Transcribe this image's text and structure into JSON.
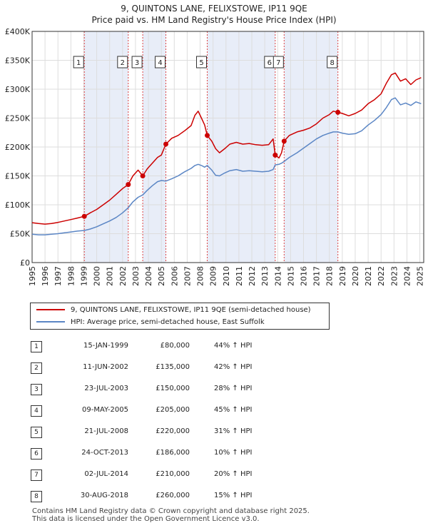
{
  "colors": {
    "property_line": "#cc0000",
    "hpi_line": "#5b86c5",
    "shade": "#e8edf8",
    "marker_line": "#dd4444"
  },
  "chart_data": {
    "type": "line",
    "title": "9, QUINTONS LANE, FELIXSTOWE, IP11 9QE",
    "subtitle": "Price paid vs. HM Land Registry's House Price Index (HPI)",
    "xlim": [
      1995.0,
      2025.3
    ],
    "ylim": [
      0,
      400000
    ],
    "x_ticks": [
      1995,
      1996,
      1997,
      1998,
      1999,
      2000,
      2001,
      2002,
      2003,
      2004,
      2005,
      2006,
      2007,
      2008,
      2009,
      2010,
      2011,
      2012,
      2013,
      2014,
      2015,
      2016,
      2017,
      2018,
      2019,
      2020,
      2021,
      2022,
      2023,
      2024,
      2025
    ],
    "y_ticks": [
      {
        "value": 0,
        "label": "£0"
      },
      {
        "value": 50000,
        "label": "£50K"
      },
      {
        "value": 100000,
        "label": "£100K"
      },
      {
        "value": 150000,
        "label": "£150K"
      },
      {
        "value": 200000,
        "label": "£200K"
      },
      {
        "value": 250000,
        "label": "£250K"
      },
      {
        "value": 300000,
        "label": "£300K"
      },
      {
        "value": 350000,
        "label": "£350K"
      },
      {
        "value": 400000,
        "label": "£400K"
      }
    ],
    "shaded_ranges": [
      [
        1999.04,
        2002.44
      ],
      [
        2003.56,
        2005.35
      ],
      [
        2008.55,
        2013.81
      ],
      [
        2014.5,
        2018.66
      ]
    ],
    "series": [
      {
        "name": "9, QUINTONS LANE, FELIXSTOWE, IP11 9QE (semi-detached house)",
        "color_key": "property_line",
        "points": [
          [
            1995.0,
            69000
          ],
          [
            1995.5,
            67500
          ],
          [
            1996.0,
            66500
          ],
          [
            1996.5,
            67500
          ],
          [
            1997.0,
            69500
          ],
          [
            1997.5,
            72000
          ],
          [
            1998.0,
            74500
          ],
          [
            1998.5,
            77000
          ],
          [
            1999.04,
            80000
          ],
          [
            1999.5,
            86000
          ],
          [
            2000.0,
            92000
          ],
          [
            2000.5,
            100000
          ],
          [
            2001.0,
            108000
          ],
          [
            2001.5,
            118000
          ],
          [
            2002.0,
            128000
          ],
          [
            2002.44,
            135000
          ],
          [
            2002.8,
            150000
          ],
          [
            2003.2,
            160000
          ],
          [
            2003.56,
            150000
          ],
          [
            2003.9,
            162000
          ],
          [
            2004.3,
            172000
          ],
          [
            2004.7,
            182000
          ],
          [
            2005.0,
            186000
          ],
          [
            2005.35,
            205000
          ],
          [
            2005.8,
            215000
          ],
          [
            2006.3,
            220000
          ],
          [
            2006.8,
            228000
          ],
          [
            2007.3,
            237000
          ],
          [
            2007.6,
            255000
          ],
          [
            2007.85,
            262000
          ],
          [
            2008.1,
            250000
          ],
          [
            2008.35,
            238000
          ],
          [
            2008.55,
            220000
          ],
          [
            2008.9,
            210000
          ],
          [
            2009.2,
            197000
          ],
          [
            2009.5,
            190000
          ],
          [
            2009.9,
            197000
          ],
          [
            2010.3,
            205000
          ],
          [
            2010.8,
            208000
          ],
          [
            2011.3,
            205000
          ],
          [
            2011.8,
            206000
          ],
          [
            2012.3,
            204000
          ],
          [
            2012.8,
            203000
          ],
          [
            2013.3,
            204000
          ],
          [
            2013.65,
            214000
          ],
          [
            2013.81,
            186000
          ],
          [
            2014.1,
            181000
          ],
          [
            2014.3,
            190000
          ],
          [
            2014.5,
            210000
          ],
          [
            2014.9,
            220000
          ],
          [
            2015.5,
            226000
          ],
          [
            2016.0,
            229000
          ],
          [
            2016.5,
            233000
          ],
          [
            2017.0,
            240000
          ],
          [
            2017.5,
            250000
          ],
          [
            2018.0,
            256000
          ],
          [
            2018.3,
            262000
          ],
          [
            2018.66,
            260000
          ],
          [
            2019.0,
            258000
          ],
          [
            2019.5,
            254000
          ],
          [
            2020.0,
            258000
          ],
          [
            2020.5,
            264000
          ],
          [
            2021.0,
            275000
          ],
          [
            2021.5,
            282000
          ],
          [
            2022.0,
            292000
          ],
          [
            2022.4,
            310000
          ],
          [
            2022.8,
            325000
          ],
          [
            2023.1,
            328000
          ],
          [
            2023.5,
            314000
          ],
          [
            2023.9,
            318000
          ],
          [
            2024.3,
            308000
          ],
          [
            2024.7,
            316000
          ],
          [
            2025.1,
            320000
          ]
        ]
      },
      {
        "name": "HPI: Average price, semi-detached house, East Suffolk",
        "color_key": "hpi_line",
        "points": [
          [
            1995.0,
            49000
          ],
          [
            1995.5,
            48000
          ],
          [
            1996.0,
            48000
          ],
          [
            1996.5,
            49000
          ],
          [
            1997.0,
            50000
          ],
          [
            1997.5,
            51500
          ],
          [
            1998.0,
            53000
          ],
          [
            1998.5,
            54500
          ],
          [
            1999.04,
            55500
          ],
          [
            1999.5,
            58000
          ],
          [
            2000.0,
            62000
          ],
          [
            2000.5,
            67000
          ],
          [
            2001.0,
            72000
          ],
          [
            2001.5,
            78000
          ],
          [
            2002.0,
            86000
          ],
          [
            2002.44,
            95000
          ],
          [
            2002.8,
            105000
          ],
          [
            2003.2,
            113000
          ],
          [
            2003.56,
            117000
          ],
          [
            2003.9,
            125000
          ],
          [
            2004.3,
            133000
          ],
          [
            2004.7,
            140000
          ],
          [
            2005.0,
            142000
          ],
          [
            2005.35,
            141000
          ],
          [
            2005.8,
            145000
          ],
          [
            2006.3,
            150000
          ],
          [
            2006.8,
            157000
          ],
          [
            2007.3,
            163000
          ],
          [
            2007.6,
            168000
          ],
          [
            2007.85,
            170000
          ],
          [
            2008.1,
            168000
          ],
          [
            2008.35,
            165000
          ],
          [
            2008.55,
            168000
          ],
          [
            2008.9,
            160000
          ],
          [
            2009.2,
            151000
          ],
          [
            2009.5,
            150000
          ],
          [
            2009.9,
            155000
          ],
          [
            2010.3,
            159000
          ],
          [
            2010.8,
            161000
          ],
          [
            2011.3,
            158000
          ],
          [
            2011.8,
            159000
          ],
          [
            2012.3,
            158000
          ],
          [
            2012.8,
            157000
          ],
          [
            2013.3,
            158000
          ],
          [
            2013.65,
            161000
          ],
          [
            2013.81,
            169000
          ],
          [
            2014.1,
            170000
          ],
          [
            2014.3,
            172000
          ],
          [
            2014.5,
            175000
          ],
          [
            2014.9,
            182000
          ],
          [
            2015.5,
            190000
          ],
          [
            2016.0,
            198000
          ],
          [
            2016.5,
            206000
          ],
          [
            2017.0,
            214000
          ],
          [
            2017.5,
            220000
          ],
          [
            2018.0,
            224000
          ],
          [
            2018.3,
            226000
          ],
          [
            2018.66,
            226000
          ],
          [
            2019.0,
            224000
          ],
          [
            2019.5,
            222000
          ],
          [
            2020.0,
            223000
          ],
          [
            2020.5,
            228000
          ],
          [
            2021.0,
            238000
          ],
          [
            2021.5,
            246000
          ],
          [
            2022.0,
            256000
          ],
          [
            2022.4,
            268000
          ],
          [
            2022.8,
            282000
          ],
          [
            2023.1,
            285000
          ],
          [
            2023.5,
            273000
          ],
          [
            2023.9,
            276000
          ],
          [
            2024.3,
            272000
          ],
          [
            2024.7,
            278000
          ],
          [
            2025.1,
            275000
          ]
        ]
      }
    ],
    "sale_markers": [
      {
        "label": "1",
        "x": 1999.04,
        "y": 80000
      },
      {
        "label": "2",
        "x": 2002.44,
        "y": 135000
      },
      {
        "label": "3",
        "x": 2003.56,
        "y": 150000
      },
      {
        "label": "4",
        "x": 2005.35,
        "y": 205000
      },
      {
        "label": "5",
        "x": 2008.55,
        "y": 220000
      },
      {
        "label": "6",
        "x": 2013.81,
        "y": 186000
      },
      {
        "label": "7",
        "x": 2014.5,
        "y": 210000
      },
      {
        "label": "8",
        "x": 2018.66,
        "y": 260000
      }
    ]
  },
  "legend": {
    "property_label": "9, QUINTONS LANE, FELIXSTOWE, IP11 9QE (semi-detached house)",
    "hpi_label": "HPI: Average price, semi-detached house, East Suffolk"
  },
  "transactions": [
    {
      "num": "1",
      "date": "15-JAN-1999",
      "price": "£80,000",
      "hpi": "44% ↑ HPI"
    },
    {
      "num": "2",
      "date": "11-JUN-2002",
      "price": "£135,000",
      "hpi": "42% ↑ HPI"
    },
    {
      "num": "3",
      "date": "23-JUL-2003",
      "price": "£150,000",
      "hpi": "28% ↑ HPI"
    },
    {
      "num": "4",
      "date": "09-MAY-2005",
      "price": "£205,000",
      "hpi": "45% ↑ HPI"
    },
    {
      "num": "5",
      "date": "21-JUL-2008",
      "price": "£220,000",
      "hpi": "31% ↑ HPI"
    },
    {
      "num": "6",
      "date": "24-OCT-2013",
      "price": "£186,000",
      "hpi": "10% ↑ HPI"
    },
    {
      "num": "7",
      "date": "02-JUL-2014",
      "price": "£210,000",
      "hpi": "20% ↑ HPI"
    },
    {
      "num": "8",
      "date": "30-AUG-2018",
      "price": "£260,000",
      "hpi": "15% ↑ HPI"
    }
  ],
  "footer": {
    "line1": "Contains HM Land Registry data © Crown copyright and database right 2025.",
    "line2": "This data is licensed under the Open Government Licence v3.0."
  }
}
